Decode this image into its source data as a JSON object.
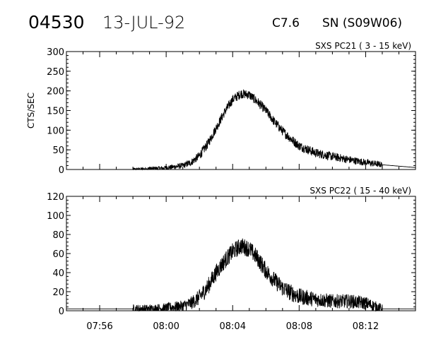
{
  "header": {
    "event_number": "04530",
    "date": "13-JUL-92",
    "flare_class": "C7.6",
    "location": "SN (S09W06)"
  },
  "chart_data": [
    {
      "type": "line",
      "channel_label": "SXS PC21  (  3 - 15 keV)",
      "ylabel": "CTS/SEC",
      "xlim": [
        "07:54",
        "08:15"
      ],
      "ylim": [
        0,
        300
      ],
      "yticks": [
        0,
        50,
        100,
        150,
        200,
        250,
        300
      ],
      "xticks": [
        "07:56",
        "08:00",
        "08:04",
        "08:08",
        "08:12"
      ],
      "grid": false,
      "x": [
        "07:54",
        "07:58",
        "07:59",
        "08:00",
        "08:01",
        "08:01:30",
        "08:02",
        "08:02:30",
        "08:03",
        "08:03:30",
        "08:04",
        "08:04:30",
        "08:05",
        "08:05:30",
        "08:06",
        "08:06:30",
        "08:07",
        "08:07:30",
        "08:08",
        "08:09",
        "08:10",
        "08:11",
        "08:12",
        "08:13",
        "08:15"
      ],
      "y": [
        0,
        0,
        2,
        4,
        10,
        18,
        35,
        65,
        105,
        145,
        178,
        193,
        190,
        172,
        150,
        122,
        98,
        78,
        60,
        42,
        33,
        25,
        18,
        12,
        5
      ],
      "noise_amplitude": 12
    },
    {
      "type": "line",
      "channel_label": "SXS PC22  ( 15 - 40 keV)",
      "ylabel": "",
      "xlim": [
        "07:54",
        "08:15"
      ],
      "ylim": [
        0,
        120
      ],
      "yticks": [
        0,
        20,
        40,
        60,
        80,
        100,
        120
      ],
      "xticks": [
        "07:56",
        "08:00",
        "08:04",
        "08:08",
        "08:12"
      ],
      "grid": false,
      "x": [
        "07:54",
        "07:58",
        "07:59",
        "08:00",
        "08:01",
        "08:01:30",
        "08:02",
        "08:02:30",
        "08:03",
        "08:03:30",
        "08:04",
        "08:04:30",
        "08:05",
        "08:05:30",
        "08:06",
        "08:06:30",
        "08:07",
        "08:07:30",
        "08:08",
        "08:09",
        "08:10",
        "08:11",
        "08:12",
        "08:13",
        "08:15"
      ],
      "y": [
        2,
        2,
        2,
        3,
        5,
        8,
        14,
        25,
        40,
        52,
        62,
        68,
        65,
        55,
        42,
        32,
        24,
        19,
        15,
        12,
        10,
        10,
        8,
        2,
        2
      ],
      "noise_amplitude": 9
    }
  ]
}
